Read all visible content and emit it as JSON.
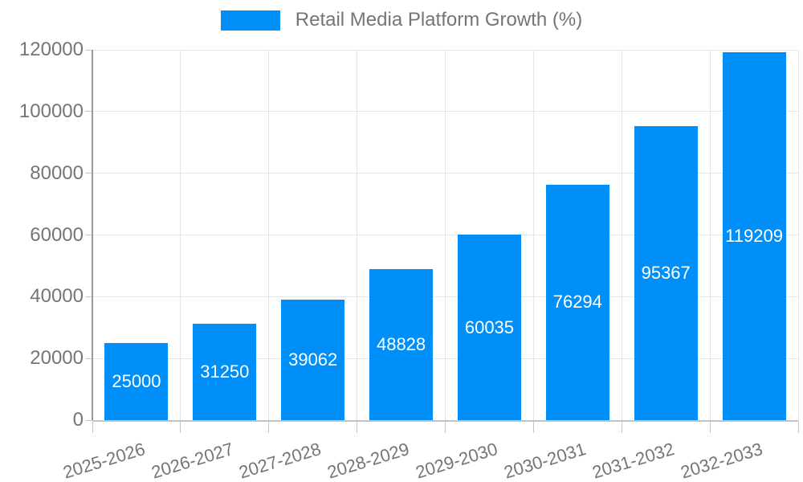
{
  "legend": {
    "label": "Retail Media Platform Growth (%)"
  },
  "chart_data": {
    "type": "bar",
    "title": "Retail Media Platform Growth (%)",
    "categories": [
      "2025-2026",
      "2026-2027",
      "2027-2028",
      "2028-2029",
      "2029-2030",
      "2030-2031",
      "2031-2032",
      "2032-2033"
    ],
    "values": [
      25000,
      31250,
      39062,
      48828,
      60035,
      76294,
      95367,
      119209
    ],
    "xlabel": "",
    "ylabel": "",
    "ylim": [
      0,
      120000
    ],
    "ytick_step": 20000,
    "ytick_labels": [
      "0",
      "20000",
      "40000",
      "60000",
      "80000",
      "100000",
      "120000"
    ],
    "grid": true,
    "legend_position": "top",
    "data_labels": "inside-center",
    "x_label_rotation_deg": -17,
    "colors": {
      "bar": "#008FF8",
      "axis_text": "#757575",
      "data_label_text": "#FFFFFF",
      "gridline": "#E6E6E6",
      "y_axis_line": "#999999",
      "x_axis_line": "#C2C2C2",
      "tick": "#C6C6C6",
      "background": "#FFFFFF"
    }
  }
}
